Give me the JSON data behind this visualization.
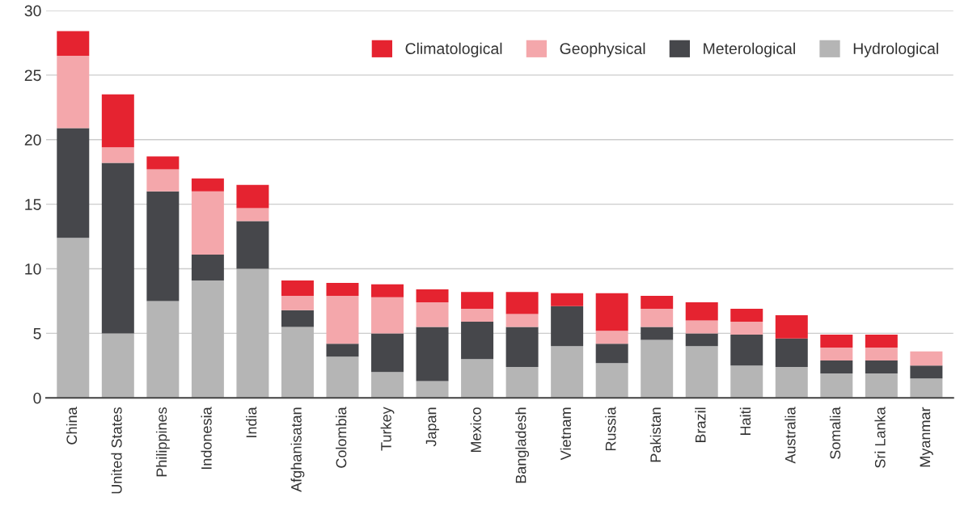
{
  "chart_data": {
    "type": "bar",
    "stacked": true,
    "categories": [
      "China",
      "United States",
      "Philippines",
      "Indonesia",
      "India",
      "Afghanisatan",
      "Colombia",
      "Turkey",
      "Japan",
      "Mexico",
      "Bangladesh",
      "Vietnam",
      "Russia",
      "Pakistan",
      "Brazil",
      "Haiti",
      "Australia",
      "Somalia",
      "Sri Lanka",
      "Myanmar"
    ],
    "series": [
      {
        "name": "Hydrological",
        "color": "#b5b5b5",
        "values": [
          12.4,
          5.0,
          7.5,
          9.1,
          10.0,
          5.5,
          3.2,
          2.0,
          1.3,
          3.0,
          2.4,
          4.0,
          2.7,
          4.5,
          4.0,
          2.5,
          2.4,
          1.9,
          1.9,
          1.5
        ]
      },
      {
        "name": "Meterological",
        "color": "#46474b",
        "values": [
          8.5,
          13.2,
          8.5,
          2.0,
          3.7,
          1.3,
          1.0,
          3.0,
          4.2,
          2.9,
          3.1,
          3.1,
          1.5,
          1.0,
          1.0,
          2.4,
          2.2,
          1.0,
          1.0,
          1.0
        ]
      },
      {
        "name": "Geophysical",
        "color": "#f4a7ab",
        "values": [
          5.6,
          1.2,
          1.7,
          4.9,
          1.0,
          1.1,
          3.7,
          2.8,
          1.9,
          1.0,
          1.0,
          null,
          1.0,
          1.4,
          1.0,
          1.0,
          null,
          1.0,
          1.0,
          1.1
        ]
      },
      {
        "name": "Climatological",
        "color": "#e52330",
        "values": [
          1.9,
          4.1,
          1.0,
          1.0,
          1.8,
          1.2,
          1.0,
          1.0,
          1.0,
          1.3,
          1.7,
          1.0,
          2.9,
          1.0,
          1.4,
          1.0,
          1.8,
          1.0,
          1.0,
          null
        ]
      }
    ],
    "ylim": [
      0,
      30
    ],
    "yticks": [
      0,
      5,
      10,
      15,
      20,
      25,
      30
    ],
    "grid": "y",
    "legend": "top right"
  }
}
